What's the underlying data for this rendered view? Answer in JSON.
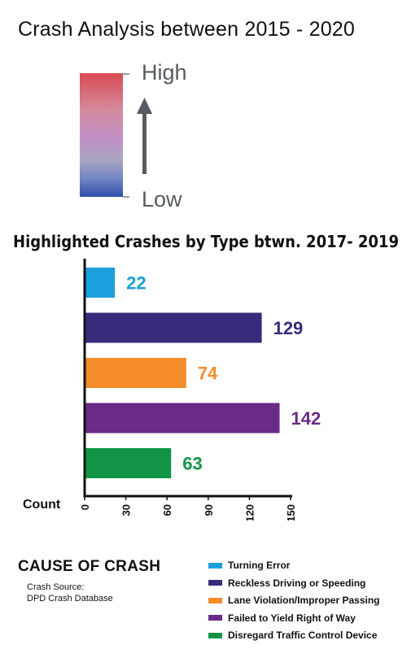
{
  "title": "Crash Analysis between 2015 - 2020",
  "color_scale": {
    "high_label": "High",
    "low_label": "Low",
    "colors": [
      "#d94a53",
      "#c18fc6",
      "#2f4ea8"
    ]
  },
  "chart_data": {
    "type": "bar",
    "orientation": "horizontal",
    "title": "Highlighted Crashes by Type btwn. 2017- 2019",
    "xlabel": "Count",
    "ylabel": "",
    "xlim": [
      0,
      150
    ],
    "x_ticks": [
      "0",
      "30",
      "60",
      "90",
      "120",
      "150"
    ],
    "categories": [
      "Turning Error",
      "Reckless Driving or Speeding",
      "Lane Violation/Improper Passing",
      "Failed to Yield Right of Way",
      "Disregard Traffic Control Device"
    ],
    "values": [
      22,
      129,
      74,
      142,
      63
    ],
    "data_labels": [
      "22",
      "129",
      "74",
      "142",
      "63"
    ],
    "colors": [
      "#1aa0dc",
      "#3a2a7c",
      "#f58c2a",
      "#6a2b86",
      "#119448"
    ],
    "grid": false,
    "legend": "bottom-right"
  },
  "legend": {
    "title": "CAUSE OF CRASH"
  },
  "source": {
    "line1": "Crash Source:",
    "line2": "DPD Crash Database"
  }
}
